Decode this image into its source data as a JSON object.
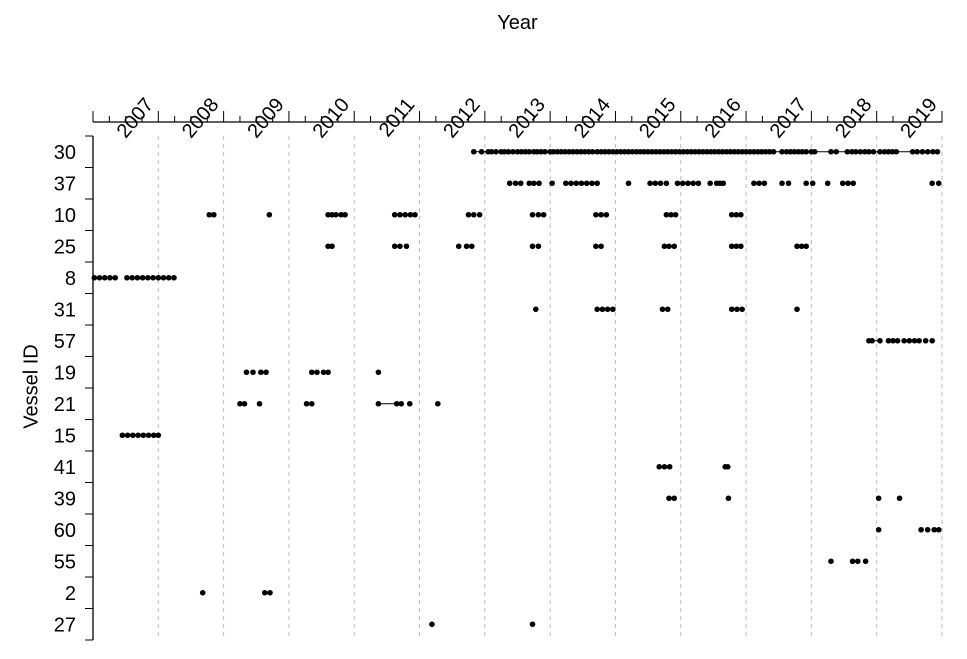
{
  "chart_data": {
    "type": "scatter",
    "title": "Year",
    "xlabel": "Year",
    "ylabel": "Vessel ID",
    "x_ticks": [
      "2007",
      "2008",
      "2009",
      "2010",
      "2011",
      "2012",
      "2013",
      "2014",
      "2015",
      "2016",
      "2017",
      "2018",
      "2019"
    ],
    "xlim": [
      2006.0,
      2019.0
    ],
    "grid": "vertical dashed at each year",
    "categories": [
      "30",
      "37",
      "10",
      "25",
      "8",
      "31",
      "57",
      "19",
      "21",
      "15",
      "41",
      "39",
      "60",
      "55",
      "2",
      "27"
    ],
    "series": [
      {
        "name": "30",
        "values": [
          2011.83,
          2011.95,
          2012.05,
          2012.1,
          2012.17,
          2012.25,
          2012.3,
          2012.36,
          2012.43,
          2012.5,
          2012.56,
          2012.62,
          2012.68,
          2012.75,
          2012.8,
          2012.86,
          2012.92,
          2013.0,
          2013.05,
          2013.11,
          2013.17,
          2013.23,
          2013.29,
          2013.35,
          2013.41,
          2013.47,
          2013.53,
          2013.59,
          2013.65,
          2013.72,
          2013.78,
          2013.84,
          2013.9,
          2013.96,
          2014.02,
          2014.08,
          2014.14,
          2014.2,
          2014.26,
          2014.32,
          2014.38,
          2014.44,
          2014.5,
          2014.56,
          2014.62,
          2014.68,
          2014.74,
          2014.8,
          2014.86,
          2014.92,
          2014.98,
          2015.04,
          2015.1,
          2015.16,
          2015.22,
          2015.28,
          2015.34,
          2015.4,
          2015.46,
          2015.52,
          2015.58,
          2015.64,
          2015.7,
          2015.76,
          2015.82,
          2015.88,
          2015.94,
          2016.0,
          2016.06,
          2016.12,
          2016.18,
          2016.24,
          2016.3,
          2016.36,
          2016.42,
          2016.55,
          2016.62,
          2016.68,
          2016.74,
          2016.8,
          2016.86,
          2016.92,
          2017.0,
          2017.05,
          2017.3,
          2017.38,
          2017.55,
          2017.62,
          2017.68,
          2017.75,
          2017.82,
          2017.88,
          2017.95,
          2018.05,
          2018.12,
          2018.18,
          2018.24,
          2018.3,
          2018.55,
          2018.62,
          2018.7,
          2018.78,
          2018.86,
          2018.93
        ]
      },
      {
        "name": "37",
        "values": [
          2012.38,
          2012.47,
          2012.55,
          2012.68,
          2012.75,
          2012.83,
          2013.03,
          2013.24,
          2013.32,
          2013.4,
          2013.48,
          2013.56,
          2013.64,
          2013.72,
          2014.2,
          2014.53,
          2014.61,
          2014.69,
          2014.78,
          2014.95,
          2015.03,
          2015.11,
          2015.19,
          2015.27,
          2015.45,
          2015.55,
          2015.6,
          2015.65,
          2016.12,
          2016.2,
          2016.28,
          2016.55,
          2016.65,
          2016.92,
          2017.02,
          2017.25,
          2017.48,
          2017.56,
          2017.64,
          2018.85,
          2018.95
        ]
      },
      {
        "name": "10",
        "values": [
          2007.78,
          2007.85,
          2008.7,
          2009.6,
          2009.66,
          2009.72,
          2009.8,
          2009.86,
          2010.62,
          2010.7,
          2010.78,
          2010.86,
          2010.93,
          2011.75,
          2011.83,
          2011.92,
          2012.73,
          2012.82,
          2012.9,
          2013.7,
          2013.78,
          2013.86,
          2014.78,
          2014.85,
          2014.92,
          2015.78,
          2015.85,
          2015.92
        ]
      },
      {
        "name": "25",
        "values": [
          2009.6,
          2009.66,
          2010.62,
          2010.7,
          2010.8,
          2011.6,
          2011.72,
          2011.8,
          2012.73,
          2012.82,
          2013.7,
          2013.78,
          2014.75,
          2014.82,
          2014.9,
          2015.78,
          2015.85,
          2015.92,
          2016.78,
          2016.85,
          2016.92
        ]
      },
      {
        "name": "8",
        "values": [
          2006.02,
          2006.1,
          2006.18,
          2006.26,
          2006.34,
          2006.52,
          2006.6,
          2006.68,
          2006.76,
          2006.84,
          2006.92,
          2007.0,
          2007.08,
          2007.16,
          2007.24
        ]
      },
      {
        "name": "31",
        "values": [
          2012.78,
          2013.72,
          2013.8,
          2013.88,
          2013.96,
          2014.72,
          2014.8,
          2015.78,
          2015.86,
          2015.94,
          2016.78
        ]
      },
      {
        "name": "57",
        "values": [
          2017.88,
          2017.93,
          2018.05,
          2018.18,
          2018.25,
          2018.32,
          2018.42,
          2018.5,
          2018.58,
          2018.65,
          2018.75,
          2018.85
        ]
      },
      {
        "name": "19",
        "values": [
          2008.35,
          2008.45,
          2008.57,
          2008.65,
          2009.35,
          2009.43,
          2009.53,
          2009.6,
          2010.37
        ]
      },
      {
        "name": "21",
        "values": [
          2008.25,
          2008.32,
          2008.55,
          2009.27,
          2009.35,
          2010.37,
          2010.65,
          2010.72,
          2010.85,
          2011.28
        ]
      },
      {
        "name": "15",
        "values": [
          2006.45,
          2006.53,
          2006.61,
          2006.69,
          2006.77,
          2006.85,
          2006.93,
          2007.0
        ]
      },
      {
        "name": "41",
        "values": [
          2014.67,
          2014.75,
          2014.83,
          2015.68,
          2015.72
        ]
      },
      {
        "name": "39",
        "values": [
          2014.82,
          2014.9,
          2015.73,
          2018.03,
          2018.35
        ]
      },
      {
        "name": "60",
        "values": [
          2018.03,
          2018.68,
          2018.78,
          2018.88,
          2018.95
        ]
      },
      {
        "name": "55",
        "values": [
          2017.3,
          2017.63,
          2017.71,
          2017.83
        ]
      },
      {
        "name": "2",
        "values": [
          2007.68,
          2008.63,
          2008.71
        ]
      },
      {
        "name": "27",
        "values": [
          2011.19,
          2012.73
        ]
      }
    ],
    "connected_segments": [
      {
        "vessel": "30",
        "from": 2011.83,
        "to": 2018.93
      },
      {
        "vessel": "10",
        "from": 2009.6,
        "to": 2009.86
      },
      {
        "vessel": "21",
        "from": 2010.37,
        "to": 2010.72
      },
      {
        "vessel": "57",
        "from": 2017.88,
        "to": 2018.05
      }
    ]
  }
}
